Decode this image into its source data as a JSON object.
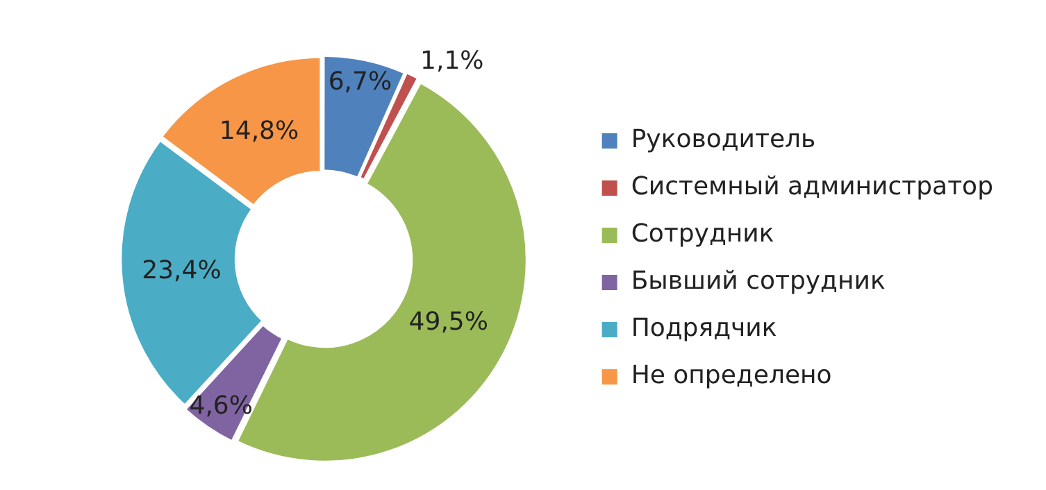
{
  "chart_data": {
    "type": "donut",
    "categories": [
      "Руководитель",
      "Системный администратор",
      "Сотрудник",
      "Бывший сотрудник",
      "Подрядчик",
      "Не определено"
    ],
    "values": [
      6.7,
      1.1,
      49.5,
      4.6,
      23.4,
      14.8
    ],
    "value_labels": [
      "6,7%",
      "1,1%",
      "49,5%",
      "4,6%",
      "23,4%",
      "14,8%"
    ],
    "colors": [
      "#4f81bd",
      "#c0504d",
      "#9bbb59",
      "#8064a2",
      "#4bacc6",
      "#f79646"
    ],
    "legend": "right"
  }
}
